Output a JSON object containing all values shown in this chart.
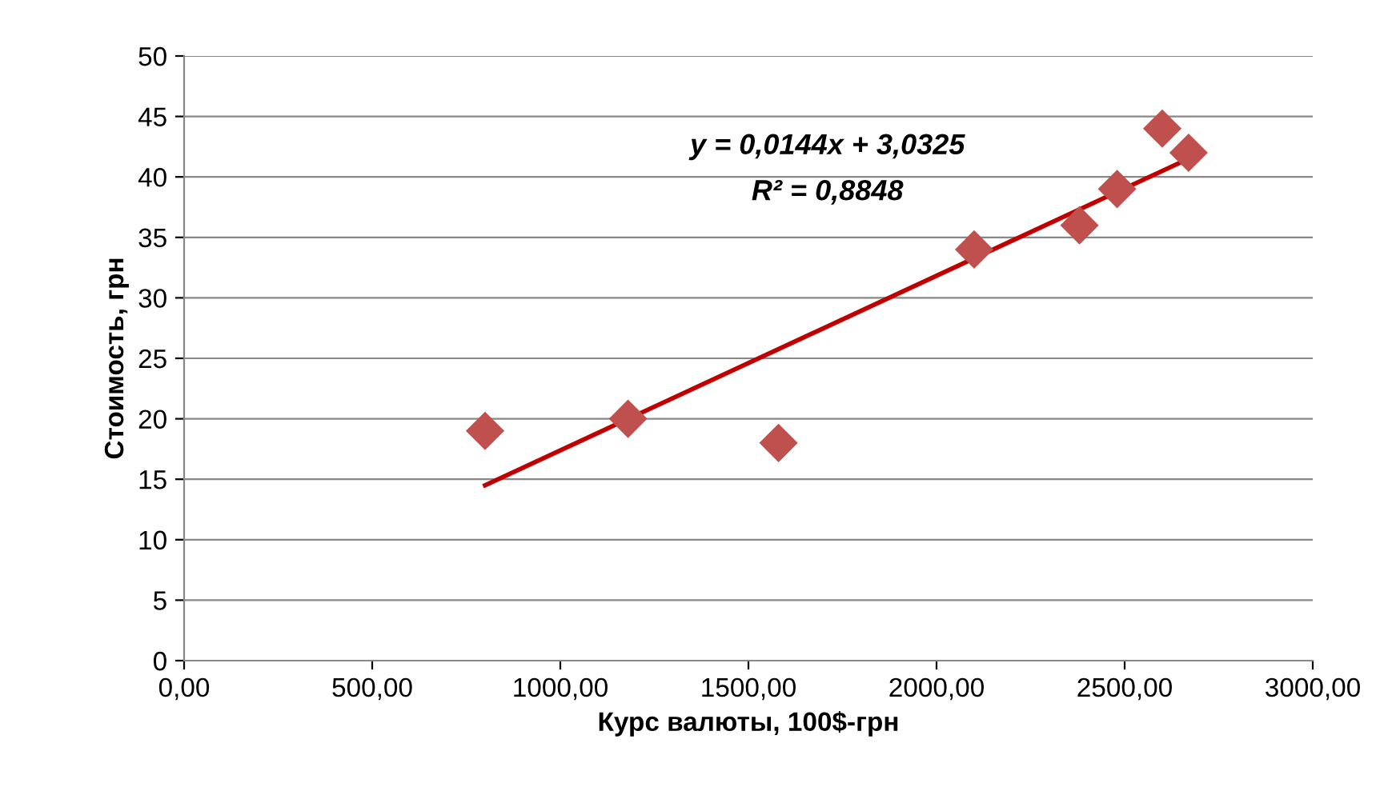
{
  "chart_data": {
    "type": "scatter",
    "xlabel": "Курс валюты, 100$-грн",
    "ylabel": "Стоимость, грн",
    "xlim": [
      0,
      3000
    ],
    "xticks": [
      {
        "value": 0,
        "label": "0,00"
      },
      {
        "value": 500,
        "label": "500,00"
      },
      {
        "value": 1000,
        "label": "1000,00"
      },
      {
        "value": 1500,
        "label": "1500,00"
      },
      {
        "value": 2000,
        "label": "2000,00"
      },
      {
        "value": 2500,
        "label": "2500,00"
      },
      {
        "value": 3000,
        "label": "3000,00"
      }
    ],
    "ylim": [
      0,
      50
    ],
    "yticks": [
      0,
      5,
      10,
      15,
      20,
      25,
      30,
      35,
      40,
      45,
      50
    ],
    "grid": "y",
    "series": [
      {
        "color": "#c0504d",
        "marker": "diamond",
        "x": [
          800,
          1180,
          1580,
          2100,
          2380,
          2480,
          2600,
          2670
        ],
        "values": [
          19,
          20,
          18,
          34,
          36,
          39,
          44,
          42
        ]
      },
      {
        "type": "line",
        "marker": "none",
        "color": "#c00000",
        "x": [
          800,
          2670
        ],
        "values": [
          14.5,
          41.5
        ]
      }
    ],
    "annotations": [
      "y = 0,0144x + 3,0325",
      "R² = 0,8848"
    ]
  }
}
